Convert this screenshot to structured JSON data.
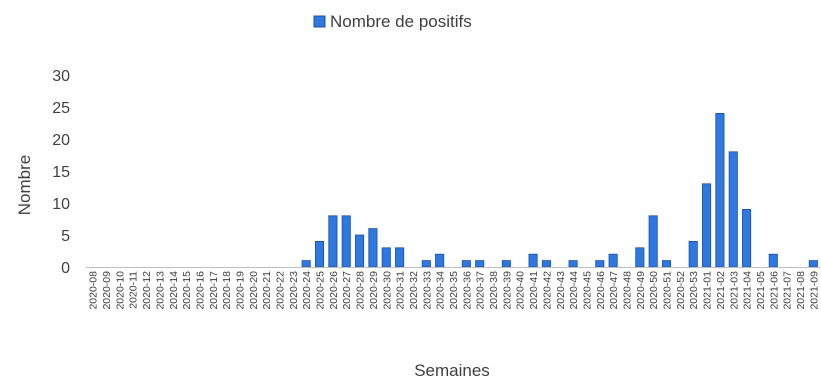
{
  "chart_data": {
    "type": "bar",
    "title": "",
    "xlabel": "Semaines",
    "ylabel": "Nombre",
    "ylim": [
      0,
      30
    ],
    "yticks": [
      0,
      5,
      10,
      15,
      20,
      25,
      30
    ],
    "grid": false,
    "legend_position": "top-center",
    "colors": {
      "bar": "#2f78e0",
      "bar_stroke": "#1a4fa3",
      "axis": "#bfbfbf",
      "text": "#404040"
    },
    "categories": [
      "2020-08",
      "2020-09",
      "2020-10",
      "2020-11",
      "2020-12",
      "2020-13",
      "2020-14",
      "2020-15",
      "2020-16",
      "2020-17",
      "2020-18",
      "2020-19",
      "2020-20",
      "2020-21",
      "2020-22",
      "2020-23",
      "2020-24",
      "2020-25",
      "2020-26",
      "2020-27",
      "2020-28",
      "2020-29",
      "2020-30",
      "2020-31",
      "2020-32",
      "2020-33",
      "2020-34",
      "2020-35",
      "2020-36",
      "2020-37",
      "2020-38",
      "2020-39",
      "2020-40",
      "2020-41",
      "2020-42",
      "2020-43",
      "2020-44",
      "2020-45",
      "2020-46",
      "2020-47",
      "2020-48",
      "2020-49",
      "2020-50",
      "2020-51",
      "2020-52",
      "2020-53",
      "2021-01",
      "2021-02",
      "2021-03",
      "2021-04",
      "2021-05",
      "2021-06",
      "2021-07",
      "2021-08",
      "2021-09"
    ],
    "series": [
      {
        "name": "Nombre de positifs",
        "values": [
          0,
          0,
          0,
          0,
          0,
          0,
          0,
          0,
          0,
          0,
          0,
          0,
          0,
          0,
          0,
          0,
          1,
          4,
          8,
          8,
          5,
          6,
          3,
          3,
          0,
          1,
          2,
          0,
          1,
          1,
          0,
          1,
          0,
          2,
          1,
          0,
          1,
          0,
          1,
          2,
          0,
          3,
          8,
          1,
          0,
          4,
          13,
          24,
          18,
          9,
          0,
          2,
          0,
          0,
          1
        ]
      }
    ]
  }
}
